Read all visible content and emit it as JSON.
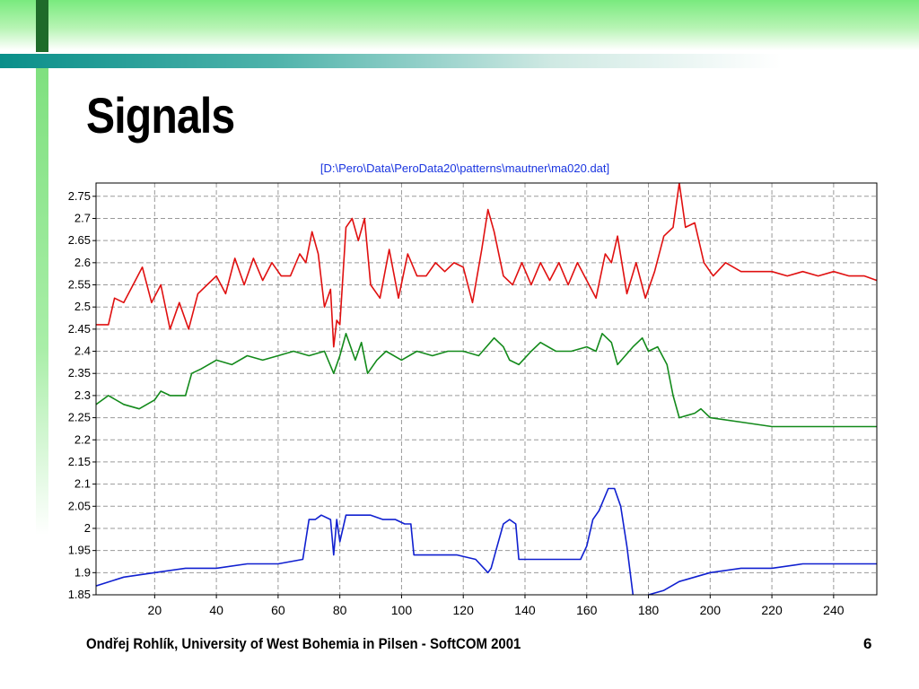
{
  "slide": {
    "title": "Signals",
    "footer": "Ondřej Rohlík, University of West Bohemia in Pilsen - SoftCOM 2001",
    "page_number": "6"
  },
  "colors": {
    "top_band": "#79ea7e",
    "accent_teal": "#0a8f8a",
    "chart_title": "#1a35e0",
    "grid": "#9a9a9a"
  },
  "chart_data": {
    "type": "line",
    "title": "[D:\\Pero\\Data\\PeroData20\\patterns\\mautner\\ma020.dat]",
    "xlabel": "",
    "ylabel": "",
    "xlim": [
      1,
      254
    ],
    "ylim": [
      1.85,
      2.78
    ],
    "grid": true,
    "legend": "none",
    "x_ticks": [
      20,
      40,
      60,
      80,
      100,
      120,
      140,
      160,
      180,
      200,
      220,
      240
    ],
    "x_tick_labels": [
      "20",
      "40",
      "60",
      "80",
      "100",
      "120",
      "140",
      "160",
      "180",
      "200",
      "220",
      "240"
    ],
    "y_ticks": [
      1.85,
      1.9,
      1.95,
      2,
      2.05,
      2.1,
      2.15,
      2.2,
      2.25,
      2.3,
      2.35,
      2.4,
      2.45,
      2.5,
      2.55,
      2.6,
      2.65,
      2.7,
      2.75
    ],
    "y_tick_labels": [
      "1.85",
      "1.9",
      "1.95",
      "2",
      "2.05",
      "2.1",
      "2.15",
      "2.2",
      "2.25",
      "2.3",
      "2.35",
      "2.4",
      "2.45",
      "2.5",
      "2.55",
      "2.6",
      "2.65",
      "2.7",
      "2.75"
    ],
    "series": [
      {
        "color": "#e01010",
        "x": [
          1,
          5,
          7,
          10,
          13,
          16,
          19,
          22,
          25,
          28,
          31,
          34,
          37,
          40,
          43,
          46,
          49,
          52,
          55,
          58,
          61,
          64,
          67,
          69,
          71,
          73,
          75,
          77,
          78,
          79,
          80,
          82,
          84,
          86,
          88,
          90,
          93,
          96,
          99,
          102,
          105,
          108,
          111,
          114,
          117,
          120,
          123,
          126,
          128,
          130,
          133,
          136,
          139,
          142,
          145,
          148,
          151,
          154,
          157,
          160,
          163,
          166,
          168,
          170,
          173,
          176,
          179,
          182,
          185,
          188,
          190,
          192,
          195,
          198,
          201,
          205,
          210,
          215,
          220,
          225,
          230,
          235,
          240,
          245,
          250,
          254
        ],
        "values": [
          2.46,
          2.46,
          2.52,
          2.51,
          2.55,
          2.59,
          2.51,
          2.55,
          2.45,
          2.51,
          2.45,
          2.53,
          2.55,
          2.57,
          2.53,
          2.61,
          2.55,
          2.61,
          2.56,
          2.6,
          2.57,
          2.57,
          2.62,
          2.6,
          2.67,
          2.62,
          2.5,
          2.54,
          2.41,
          2.47,
          2.46,
          2.68,
          2.7,
          2.65,
          2.7,
          2.55,
          2.52,
          2.63,
          2.52,
          2.62,
          2.57,
          2.57,
          2.6,
          2.58,
          2.6,
          2.59,
          2.51,
          2.63,
          2.72,
          2.67,
          2.57,
          2.55,
          2.6,
          2.55,
          2.6,
          2.56,
          2.6,
          2.55,
          2.6,
          2.56,
          2.52,
          2.62,
          2.6,
          2.66,
          2.53,
          2.6,
          2.52,
          2.58,
          2.66,
          2.68,
          2.78,
          2.68,
          2.69,
          2.6,
          2.57,
          2.6,
          2.58,
          2.58,
          2.58,
          2.57,
          2.58,
          2.57,
          2.58,
          2.57,
          2.57,
          2.56
        ]
      },
      {
        "color": "#138a1b",
        "x": [
          1,
          5,
          10,
          15,
          20,
          22,
          25,
          30,
          32,
          35,
          40,
          45,
          50,
          55,
          60,
          65,
          70,
          75,
          78,
          80,
          82,
          85,
          87,
          89,
          92,
          95,
          100,
          105,
          110,
          115,
          120,
          125,
          130,
          133,
          135,
          138,
          142,
          145,
          150,
          155,
          160,
          163,
          165,
          168,
          170,
          175,
          178,
          180,
          183,
          186,
          188,
          190,
          195,
          197,
          200,
          210,
          220,
          230,
          240,
          250,
          254
        ],
        "values": [
          2.28,
          2.3,
          2.28,
          2.27,
          2.29,
          2.31,
          2.3,
          2.3,
          2.35,
          2.36,
          2.38,
          2.37,
          2.39,
          2.38,
          2.39,
          2.4,
          2.39,
          2.4,
          2.35,
          2.39,
          2.44,
          2.38,
          2.42,
          2.35,
          2.38,
          2.4,
          2.38,
          2.4,
          2.39,
          2.4,
          2.4,
          2.39,
          2.43,
          2.41,
          2.38,
          2.37,
          2.4,
          2.42,
          2.4,
          2.4,
          2.41,
          2.4,
          2.44,
          2.42,
          2.37,
          2.41,
          2.43,
          2.4,
          2.41,
          2.37,
          2.3,
          2.25,
          2.26,
          2.27,
          2.25,
          2.24,
          2.23,
          2.23,
          2.23,
          2.23,
          2.23
        ]
      },
      {
        "color": "#1020d0",
        "x": [
          1,
          10,
          20,
          30,
          40,
          50,
          60,
          68,
          70,
          72,
          74,
          77,
          78,
          79,
          80,
          82,
          86,
          90,
          94,
          98,
          101,
          103,
          104,
          105,
          110,
          118,
          124,
          128,
          129,
          131,
          133,
          135,
          137,
          138,
          140,
          145,
          152,
          158,
          160,
          162,
          164,
          167,
          169,
          171,
          173,
          175,
          176,
          177,
          178,
          180,
          185,
          190,
          200,
          210,
          220,
          230,
          240,
          250,
          254
        ],
        "values": [
          1.87,
          1.89,
          1.9,
          1.91,
          1.91,
          1.92,
          1.92,
          1.93,
          2.02,
          2.02,
          2.03,
          2.02,
          1.94,
          2.02,
          1.97,
          2.03,
          2.03,
          2.03,
          2.02,
          2.02,
          2.01,
          2.01,
          1.94,
          1.94,
          1.94,
          1.94,
          1.93,
          1.9,
          1.91,
          1.96,
          2.01,
          2.02,
          2.01,
          1.93,
          1.93,
          1.93,
          1.93,
          1.93,
          1.96,
          2.02,
          2.04,
          2.09,
          2.09,
          2.05,
          1.96,
          1.85,
          1.84,
          1.84,
          1.84,
          1.85,
          1.86,
          1.88,
          1.9,
          1.91,
          1.91,
          1.92,
          1.92,
          1.92,
          1.92
        ]
      }
    ]
  }
}
